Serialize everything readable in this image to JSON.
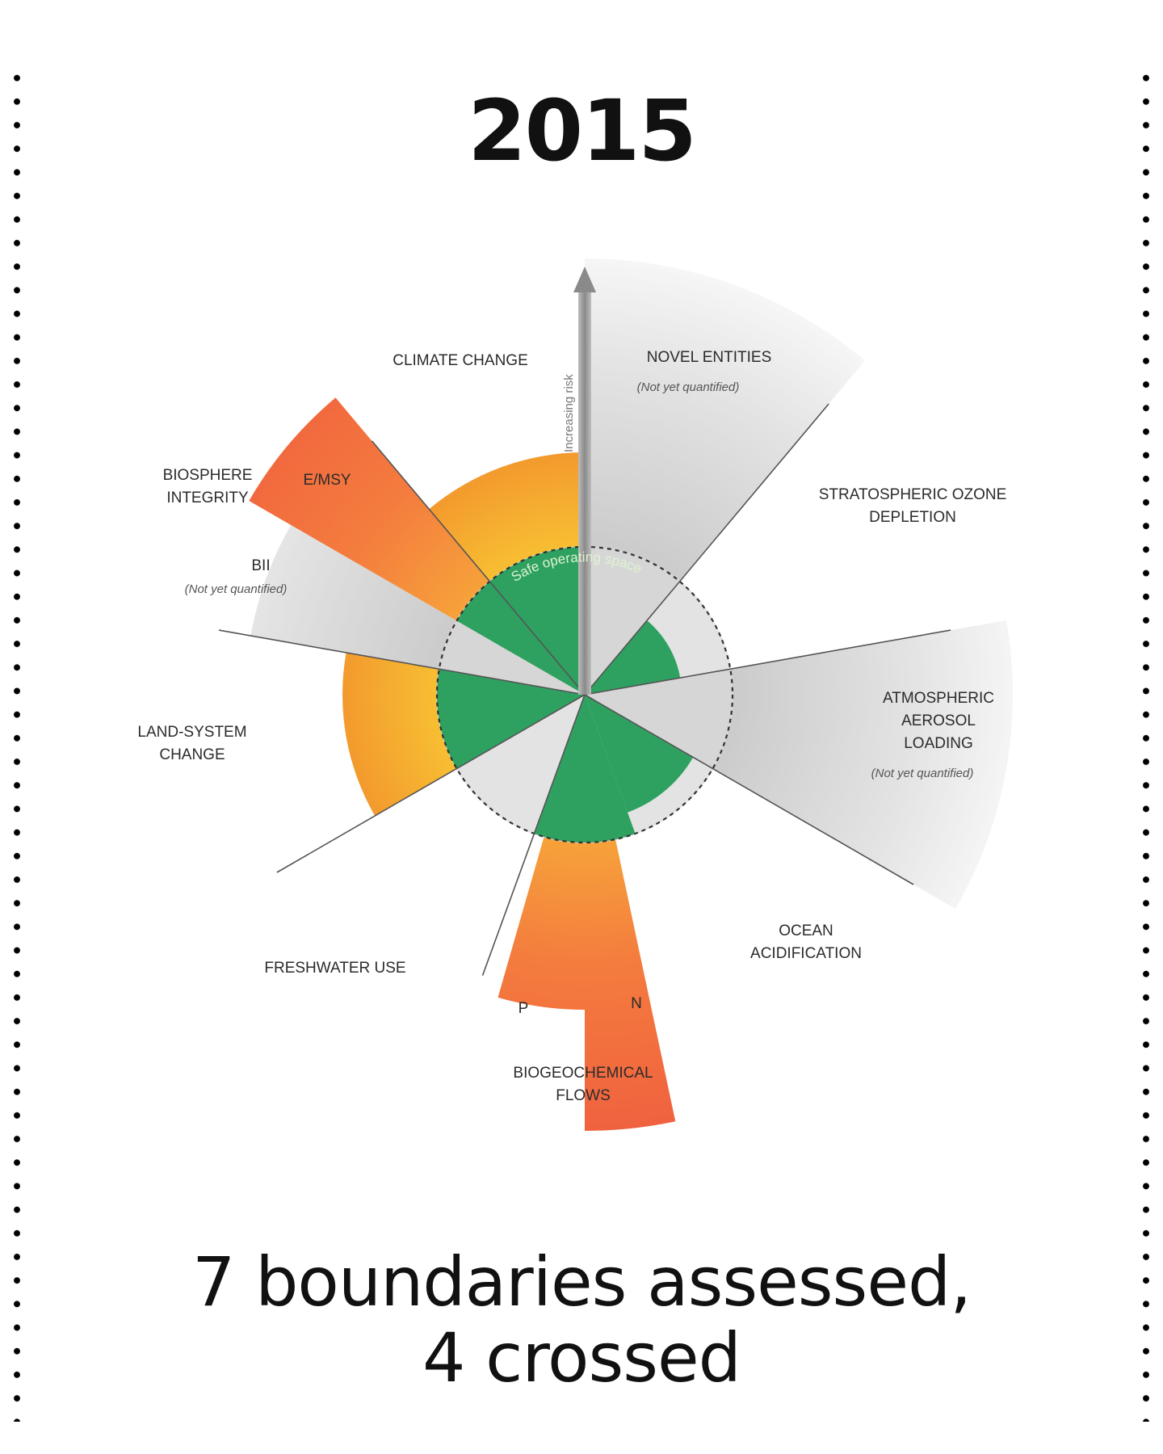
{
  "title": "2015",
  "summary_line1": "7 boundaries assessed,",
  "summary_line2": "4 crossed",
  "axis_label": "Increasing risk",
  "safe_space_label": "Safe operating space",
  "colors": {
    "safe": "#2ea160",
    "uncertainty": "#f5a033",
    "high_risk": "#f26a40",
    "not_quantified": "#dcdcdc",
    "dividers": "#555555"
  },
  "boundaries": [
    {
      "name": "CLIMATE CHANGE",
      "status": "increasing risk"
    },
    {
      "name": "NOVEL ENTITIES",
      "note": "(Not yet quantified)",
      "status": "not quantified"
    },
    {
      "name": "STRATOSPHERIC OZONE DEPLETION",
      "status": "safe"
    },
    {
      "name": "ATMOSPHERIC AEROSOL LOADING",
      "note": "(Not yet quantified)",
      "status": "not quantified"
    },
    {
      "name": "OCEAN ACIDIFICATION",
      "status": "safe"
    },
    {
      "name": "BIOGEOCHEMICAL FLOWS",
      "sub": [
        "P",
        "N"
      ],
      "status": "high risk"
    },
    {
      "name": "FRESHWATER USE",
      "status": "safe"
    },
    {
      "name": "LAND-SYSTEM CHANGE",
      "status": "increasing risk"
    },
    {
      "name": "BIOSPHERE INTEGRITY",
      "sub": [
        "E/MSY",
        "BII"
      ],
      "note": "(Not yet quantified)",
      "status": "high risk"
    }
  ],
  "labels": {
    "climate": "CLIMATE CHANGE",
    "novel": "NOVEL ENTITIES",
    "novel_note": "(Not yet quantified)",
    "ozone_1": "STRATOSPHERIC OZONE",
    "ozone_2": "DEPLETION",
    "aerosol_1": "ATMOSPHERIC",
    "aerosol_2": "AEROSOL",
    "aerosol_3": "LOADING",
    "aerosol_note": "(Not yet quantified)",
    "ocean_1": "OCEAN",
    "ocean_2": "ACIDIFICATION",
    "biogeo_1": "BIOGEOCHEMICAL",
    "biogeo_2": "FLOWS",
    "fresh": "FRESHWATER USE",
    "land_1": "LAND-SYSTEM",
    "land_2": "CHANGE",
    "bio_1": "BIOSPHERE",
    "bio_2": "INTEGRITY",
    "emsy": "E/MSY",
    "bii": "BII",
    "bii_note": "(Not yet quantified)",
    "p": "P",
    "n": "N"
  }
}
